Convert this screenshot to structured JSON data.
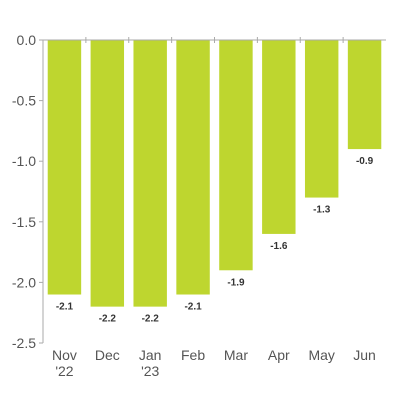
{
  "chart_data": {
    "type": "bar",
    "title": "",
    "xlabel": "",
    "ylabel": "",
    "categories": [
      [
        "Nov",
        "'22"
      ],
      [
        "Dec"
      ],
      [
        "Jan",
        "'23"
      ],
      [
        "Feb"
      ],
      [
        "Mar"
      ],
      [
        "Apr"
      ],
      [
        "May"
      ],
      [
        "Jun"
      ]
    ],
    "values": [
      -2.1,
      -2.2,
      -2.2,
      -2.1,
      -1.9,
      -1.6,
      -1.3,
      -0.9
    ],
    "data_labels": [
      "-2.1",
      "-2.2",
      "-2.2",
      "-2.1",
      "-1.9",
      "-1.6",
      "-1.3",
      "-0.9"
    ],
    "ylim": [
      -2.5,
      0.0
    ],
    "yticks": [
      0.0,
      -0.5,
      -1.0,
      -1.5,
      -2.0,
      -2.5
    ],
    "ytick_labels": [
      "0.0",
      "-0.5",
      "-1.0",
      "-1.5",
      "-2.0",
      "-2.5"
    ],
    "grid": false,
    "bar_color": "#bed62f",
    "axis_color": "#aaaaaa"
  }
}
